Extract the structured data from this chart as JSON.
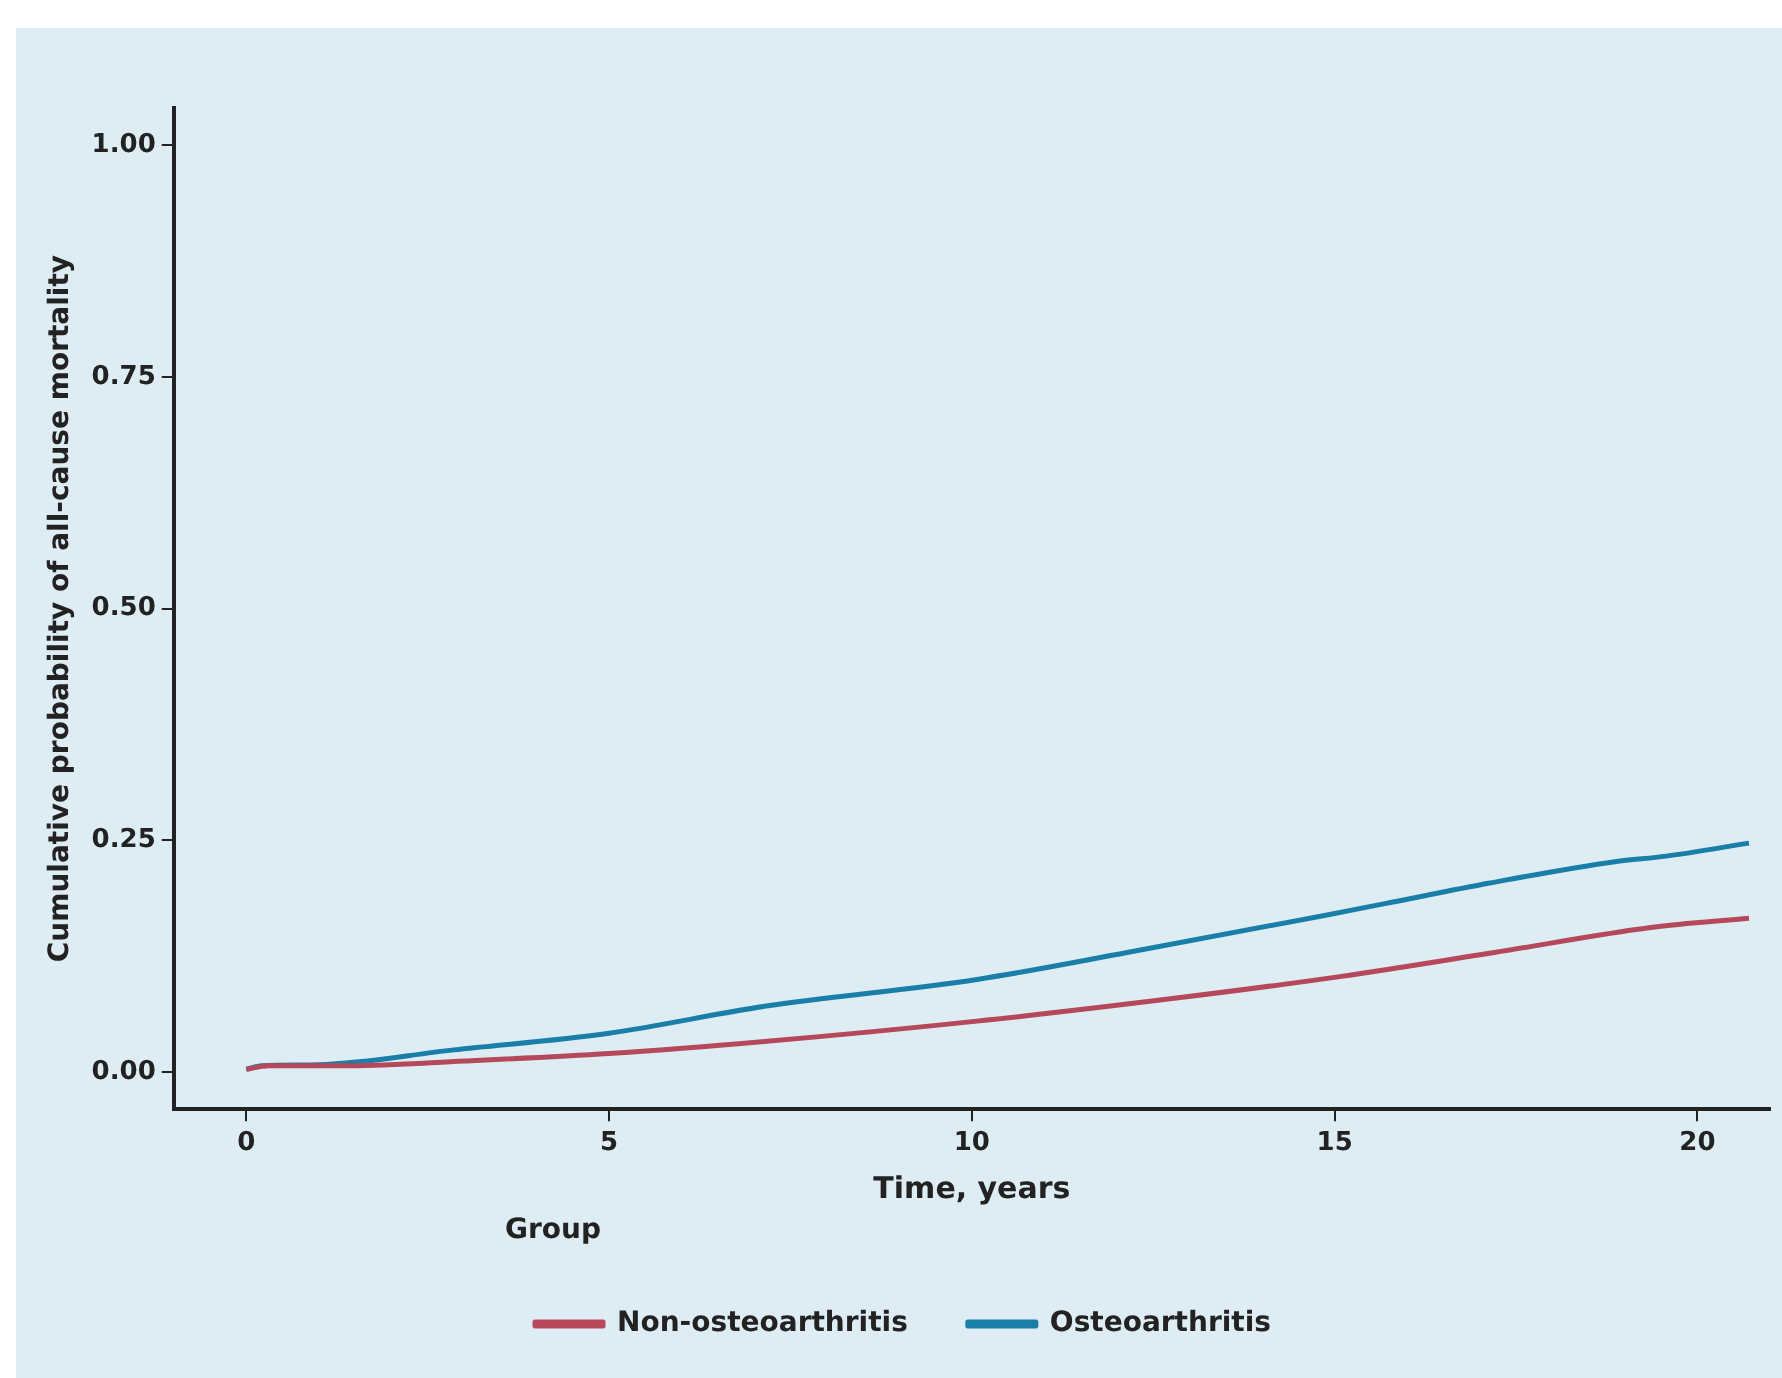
{
  "chart_data": {
    "type": "line",
    "xlabel": "Time, years",
    "ylabel": "Cumulative probability of all-cause mortality",
    "legend_title": "Group",
    "legend": "bottom",
    "grid": false,
    "marker": "none",
    "line_style": "solid",
    "xlim": [
      -1,
      21
    ],
    "xticks": [
      0,
      5,
      10,
      15,
      20
    ],
    "ylim": [
      -0.04,
      1.04
    ],
    "yticks": [
      {
        "value": 0,
        "label": "0.00"
      },
      {
        "value": 0.25,
        "label": "0.25"
      },
      {
        "value": 0.5,
        "label": "0.50"
      },
      {
        "value": 0.75,
        "label": "0.75"
      },
      {
        "value": 1,
        "label": "1.00"
      }
    ],
    "series": [
      {
        "name": "Non-osteoarthritis",
        "color": "#b5485a",
        "x": [
          0,
          0.3,
          1.43,
          3,
          5,
          7.14,
          10.07,
          12.93,
          15.07,
          17.2,
          19.36,
          20.71
        ],
        "values": [
          0.003,
          0.007,
          0.007,
          0.012,
          0.02,
          0.033,
          0.055,
          0.081,
          0.103,
          0.129,
          0.156,
          0.166
        ]
      },
      {
        "name": "Osteoarthritis",
        "color": "#1a7fa8",
        "x": [
          0,
          0.21,
          1,
          2.86,
          5,
          7.14,
          10.07,
          12.14,
          14.86,
          15.71,
          17.14,
          18.86,
          19.57,
          20.71
        ],
        "values": [
          0.003,
          0.007,
          0.008,
          0.024,
          0.042,
          0.071,
          0.1,
          0.129,
          0.169,
          0.182,
          0.204,
          0.227,
          0.233,
          0.247
        ]
      }
    ]
  }
}
